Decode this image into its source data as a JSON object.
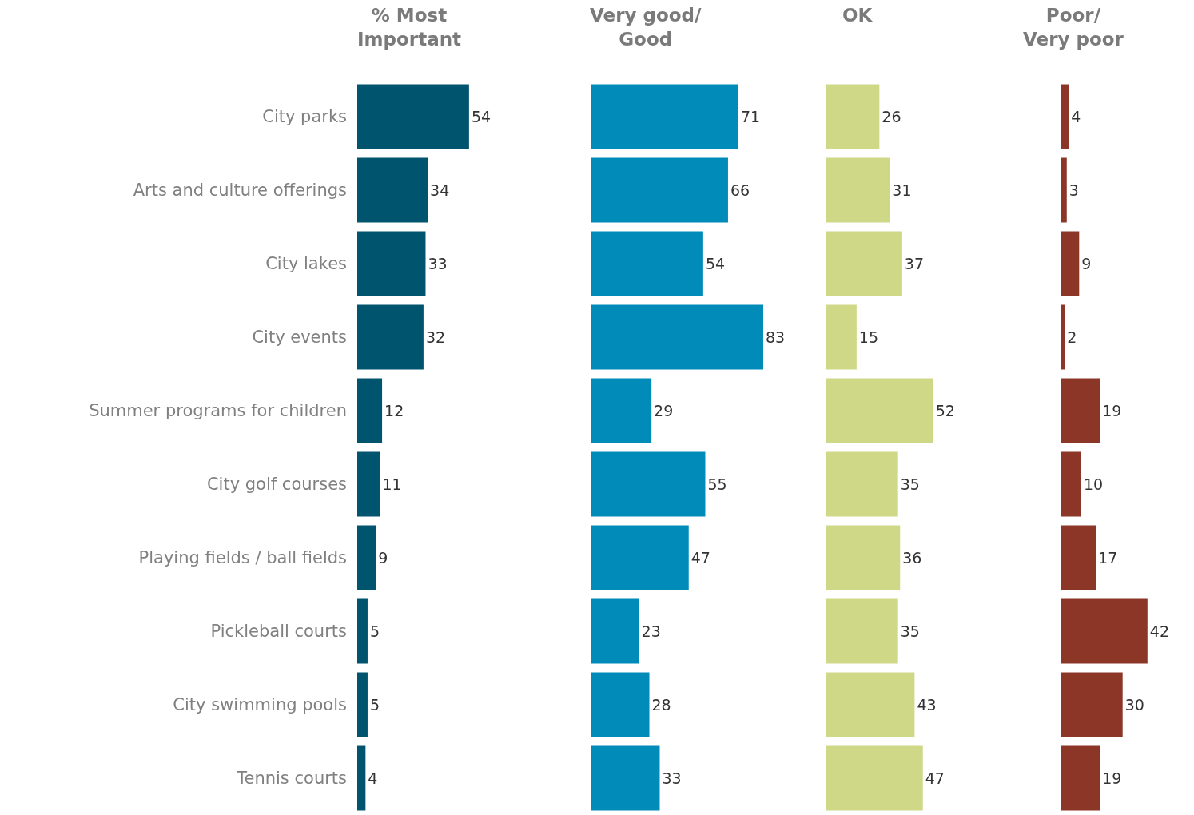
{
  "chart_data": [
    {
      "type": "bar",
      "orientation": "horizontal",
      "title": "% Most\nImportant",
      "categories": [
        "City parks",
        "Arts and culture offerings",
        "City lakes",
        "City events",
        "Summer programs for children",
        "City golf courses",
        "Playing fields / ball fields",
        "Pickleball courts",
        "City swimming pools",
        "Tennis courts"
      ],
      "values": [
        54,
        34,
        33,
        32,
        12,
        11,
        9,
        5,
        5,
        4
      ],
      "color": "#00546e",
      "data_labels": true,
      "tick_labels": "y",
      "legend": false
    },
    {
      "type": "bar",
      "orientation": "horizontal",
      "title": "Very good/\nGood",
      "categories": [
        "City parks",
        "Arts and culture offerings",
        "City lakes",
        "City events",
        "Summer programs for children",
        "City golf courses",
        "Playing fields / ball fields",
        "Pickleball courts",
        "City swimming pools",
        "Tennis courts"
      ],
      "values": [
        71,
        66,
        54,
        83,
        29,
        55,
        47,
        23,
        28,
        33
      ],
      "color": "#008bb9",
      "data_labels": true,
      "tick_labels": false,
      "legend": false
    },
    {
      "type": "bar",
      "orientation": "horizontal",
      "title": "OK",
      "categories": [
        "City parks",
        "Arts and culture offerings",
        "City lakes",
        "City events",
        "Summer programs for children",
        "City golf courses",
        "Playing fields / ball fields",
        "Pickleball courts",
        "City swimming pools",
        "Tennis courts"
      ],
      "values": [
        26,
        31,
        37,
        15,
        52,
        35,
        36,
        35,
        43,
        47
      ],
      "color": "#cfd887",
      "data_labels": true,
      "tick_labels": false,
      "legend": false
    },
    {
      "type": "bar",
      "orientation": "horizontal",
      "title": "Poor/\nVery poor",
      "categories": [
        "City parks",
        "Arts and culture offerings",
        "City lakes",
        "City events",
        "Summer programs for children",
        "City golf courses",
        "Playing fields / ball fields",
        "Pickleball courts",
        "City swimming pools",
        "Tennis courts"
      ],
      "values": [
        4,
        3,
        9,
        2,
        19,
        10,
        17,
        42,
        30,
        19
      ],
      "color": "#8b3626",
      "data_labels": true,
      "tick_labels": false,
      "legend": false
    }
  ]
}
